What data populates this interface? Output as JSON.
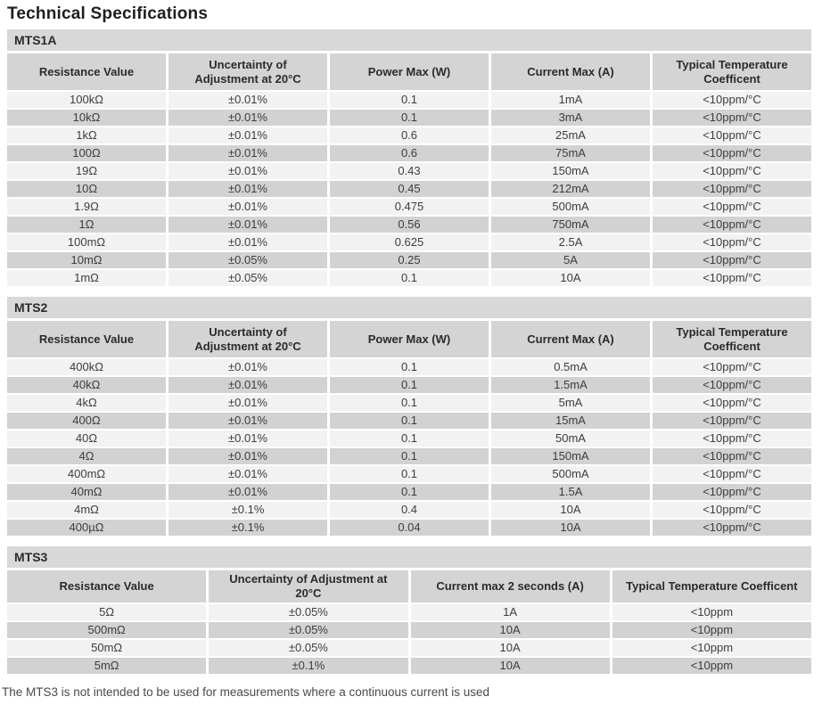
{
  "page": {
    "title": "Technical Specifications",
    "footnote": "The MTS3 is not intended to be used for measurements where a continuous current is used"
  },
  "colors": {
    "section_bar": "#d8d8d8",
    "header_cell": "#d4d4d4",
    "row_light": "#f2f2f2",
    "row_dark": "#d2d2d2",
    "cell_text": "#3d3d3d",
    "header_text": "#2b2b2b"
  },
  "tables": [
    {
      "name": "MTS1A",
      "columns": [
        "Resistance Value",
        "Uncertainty of Adjustment at 20°C",
        "Power Max (W)",
        "Current Max (A)",
        "Typical Temperature Coefficent"
      ],
      "rows": [
        [
          "100kΩ",
          "±0.01%",
          "0.1",
          "1mA",
          "<10ppm/°C"
        ],
        [
          "10kΩ",
          "±0.01%",
          "0.1",
          "3mA",
          "<10ppm/°C"
        ],
        [
          "1kΩ",
          "±0.01%",
          "0.6",
          "25mA",
          "<10ppm/°C"
        ],
        [
          "100Ω",
          "±0.01%",
          "0.6",
          "75mA",
          "<10ppm/°C"
        ],
        [
          "19Ω",
          "±0.01%",
          "0.43",
          "150mA",
          "<10ppm/°C"
        ],
        [
          "10Ω",
          "±0.01%",
          "0.45",
          "212mA",
          "<10ppm/°C"
        ],
        [
          "1.9Ω",
          "±0.01%",
          "0.475",
          "500mA",
          "<10ppm/°C"
        ],
        [
          "1Ω",
          "±0.01%",
          "0.56",
          "750mA",
          "<10ppm/°C"
        ],
        [
          "100mΩ",
          "±0.01%",
          "0.625",
          "2.5A",
          "<10ppm/°C"
        ],
        [
          "10mΩ",
          "±0.05%",
          "0.25",
          "5A",
          "<10ppm/°C"
        ],
        [
          "1mΩ",
          "±0.05%",
          "0.1",
          "10A",
          "<10ppm/°C"
        ]
      ]
    },
    {
      "name": "MTS2",
      "columns": [
        "Resistance Value",
        "Uncertainty of Adjustment at 20°C",
        "Power Max (W)",
        "Current Max (A)",
        "Typical Temperature Coefficent"
      ],
      "rows": [
        [
          "400kΩ",
          "±0.01%",
          "0.1",
          "0.5mA",
          "<10ppm/°C"
        ],
        [
          "40kΩ",
          "±0.01%",
          "0.1",
          "1.5mA",
          "<10ppm/°C"
        ],
        [
          "4kΩ",
          "±0.01%",
          "0.1",
          "5mA",
          "<10ppm/°C"
        ],
        [
          "400Ω",
          "±0.01%",
          "0.1",
          "15mA",
          "<10ppm/°C"
        ],
        [
          "40Ω",
          "±0.01%",
          "0.1",
          "50mA",
          "<10ppm/°C"
        ],
        [
          "4Ω",
          "±0.01%",
          "0.1",
          "150mA",
          "<10ppm/°C"
        ],
        [
          "400mΩ",
          "±0.01%",
          "0.1",
          "500mA",
          "<10ppm/°C"
        ],
        [
          "40mΩ",
          "±0.01%",
          "0.1",
          "1.5A",
          "<10ppm/°C"
        ],
        [
          "4mΩ",
          "±0.1%",
          "0.4",
          "10A",
          "<10ppm/°C"
        ],
        [
          "400µΩ",
          "±0.1%",
          "0.04",
          "10A",
          "<10ppm/°C"
        ]
      ]
    },
    {
      "name": "MTS3",
      "columns": [
        "Resistance Value",
        "Uncertainty of Adjustment at 20°C",
        "Current max 2 seconds (A)",
        "Typical Temperature Coefficent"
      ],
      "rows": [
        [
          "5Ω",
          "±0.05%",
          "1A",
          "<10ppm"
        ],
        [
          "500mΩ",
          "±0.05%",
          "10A",
          "<10ppm"
        ],
        [
          "50mΩ",
          "±0.05%",
          "10A",
          "<10ppm"
        ],
        [
          "5mΩ",
          "±0.1%",
          "10A",
          "<10ppm"
        ]
      ]
    }
  ]
}
